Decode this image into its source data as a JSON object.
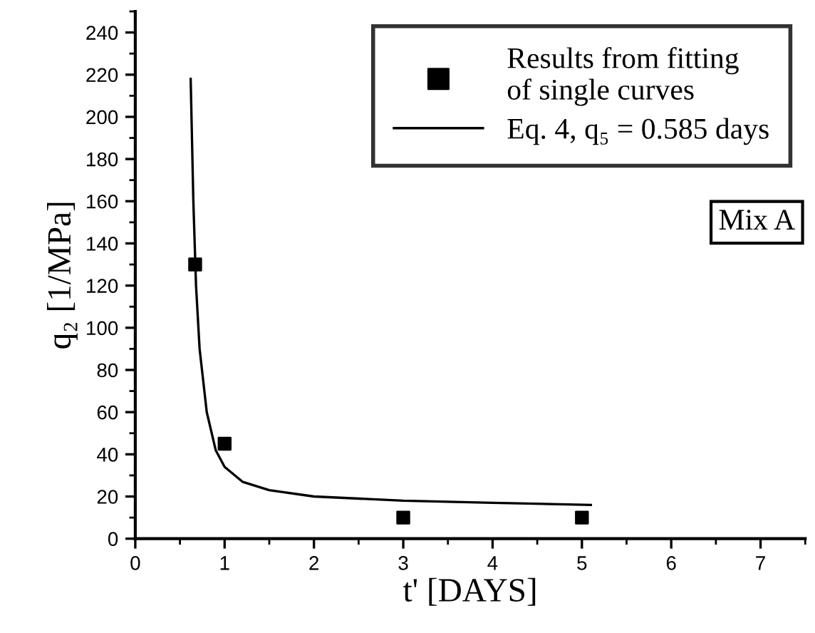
{
  "chart_data": {
    "type": "scatter",
    "xlabel": "t' [DAYS]",
    "ylabel": "q₂ [1/MPa]",
    "xlim": [
      0,
      7.5
    ],
    "ylim": [
      0,
      250
    ],
    "xticks": [
      0,
      1,
      2,
      3,
      4,
      5,
      6,
      7
    ],
    "yticks": [
      0,
      20,
      40,
      60,
      80,
      100,
      120,
      140,
      160,
      180,
      200,
      220,
      240
    ],
    "grid": false,
    "legend": "top right",
    "annotations": [
      "Mix A"
    ],
    "series": [
      {
        "name": "Results from fitting\nof single curves",
        "color": "#000000",
        "marker": "square",
        "x": [
          0.67,
          1,
          3,
          5
        ],
        "values": [
          130,
          45,
          10,
          10
        ]
      },
      {
        "name": "Eq. 4, q₅ = 0.585 days",
        "type": "line",
        "color": "#000000",
        "marker": "none",
        "line_style": "solid",
        "x": [
          0.62,
          0.65,
          0.68,
          0.72,
          0.8,
          0.9,
          1.0,
          1.2,
          1.5,
          2,
          3,
          4,
          5.1
        ],
        "values": [
          218,
          160,
          120,
          90,
          60,
          42,
          34,
          27,
          23,
          20,
          18,
          17,
          16
        ]
      }
    ]
  }
}
